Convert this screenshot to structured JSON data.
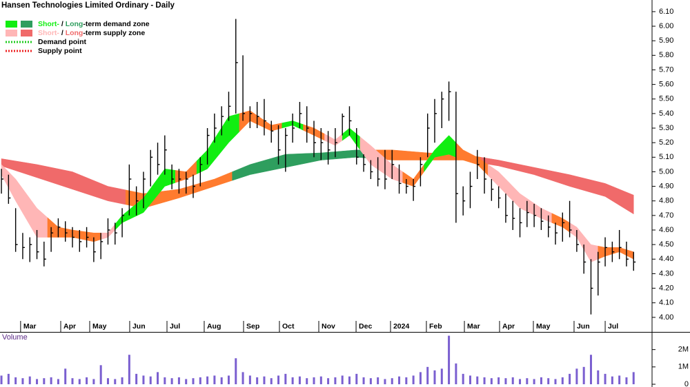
{
  "chart_data": {
    "type": "ohlc",
    "title": "Hansen Technologies Limited Ordinary - Daily",
    "color": "#000000",
    "xlim": [
      -0.2,
      91.6
    ],
    "xticks": [
      {
        "value": 2.7,
        "label": "Mar"
      },
      {
        "value": 8.35,
        "label": "Apr"
      },
      {
        "value": 12.43,
        "label": "May"
      },
      {
        "value": 18.06,
        "label": "Jun"
      },
      {
        "value": 23.31,
        "label": "Jul"
      },
      {
        "value": 28.55,
        "label": "Aug"
      },
      {
        "value": 34.09,
        "label": "Sep"
      },
      {
        "value": 39.14,
        "label": "Oct"
      },
      {
        "value": 44.68,
        "label": "Nov"
      },
      {
        "value": 49.93,
        "label": "Dec"
      },
      {
        "value": 54.78,
        "label": "2024"
      },
      {
        "value": 59.83,
        "label": "Feb"
      },
      {
        "value": 65.18,
        "label": "Mar"
      },
      {
        "value": 70.13,
        "label": "Apr"
      },
      {
        "value": 74.89,
        "label": "May"
      },
      {
        "value": 80.62,
        "label": "Jun"
      },
      {
        "value": 85.0,
        "label": "Jul"
      }
    ],
    "ylim": [
      3.9,
      6.18
    ],
    "yticks": [
      {
        "value": 4.0,
        "label": "4.00"
      },
      {
        "value": 4.1,
        "label": "4.10"
      },
      {
        "value": 4.2,
        "label": "4.20"
      },
      {
        "value": 4.3,
        "label": "4.30"
      },
      {
        "value": 4.4,
        "label": "4.40"
      },
      {
        "value": 4.5,
        "label": "4.50"
      },
      {
        "value": 4.6,
        "label": "4.60"
      },
      {
        "value": 4.7,
        "label": "4.70"
      },
      {
        "value": 4.8,
        "label": "4.80"
      },
      {
        "value": 4.9,
        "label": "4.90"
      },
      {
        "value": 5.0,
        "label": "5.00"
      },
      {
        "value": 5.1,
        "label": "5.10"
      },
      {
        "value": 5.2,
        "label": "5.20"
      },
      {
        "value": 5.3,
        "label": "5.30"
      },
      {
        "value": 5.4,
        "label": "5.40"
      },
      {
        "value": 5.5,
        "label": "5.50"
      },
      {
        "value": 5.6,
        "label": "5.60"
      },
      {
        "value": 5.7,
        "label": "5.70"
      },
      {
        "value": 5.8,
        "label": "5.80"
      },
      {
        "value": 5.9,
        "label": "5.90"
      },
      {
        "value": 6.0,
        "label": "6.00"
      },
      {
        "value": 6.1,
        "label": "6.10"
      }
    ],
    "high": [
      5.02,
      4.98,
      4.75,
      4.58,
      4.55,
      4.6,
      4.52,
      4.62,
      4.68,
      4.66,
      4.62,
      4.6,
      4.62,
      4.55,
      4.58,
      4.68,
      4.65,
      4.75,
      5.05,
      4.9,
      5.0,
      5.15,
      5.2,
      5.25,
      5.05,
      5.02,
      5.0,
      4.98,
      5.1,
      5.3,
      5.4,
      5.45,
      5.55,
      6.05,
      5.8,
      5.45,
      5.48,
      5.5,
      5.35,
      5.32,
      5.3,
      5.4,
      5.48,
      5.45,
      5.35,
      5.3,
      5.28,
      5.3,
      5.4,
      5.45,
      5.3,
      5.12,
      5.08,
      5.1,
      5.15,
      5.15,
      5.05,
      4.95,
      4.95,
      5.1,
      5.4,
      5.5,
      5.55,
      5.62,
      5.55,
      4.9,
      5.0,
      5.15,
      5.1,
      4.95,
      4.9,
      4.85,
      4.8,
      4.75,
      4.8,
      4.78,
      4.75,
      4.7,
      4.65,
      4.72,
      4.8,
      4.6,
      4.5,
      4.4,
      4.45,
      4.55,
      4.52,
      4.6,
      4.52,
      4.45
    ],
    "low": [
      4.85,
      4.78,
      4.45,
      4.4,
      4.38,
      4.4,
      4.35,
      4.45,
      4.55,
      4.52,
      4.48,
      4.45,
      4.48,
      4.38,
      4.4,
      4.5,
      4.5,
      4.55,
      4.7,
      4.7,
      4.75,
      4.9,
      4.98,
      4.98,
      4.88,
      4.85,
      4.85,
      4.82,
      4.9,
      5.05,
      5.2,
      5.25,
      5.35,
      5.4,
      5.35,
      5.3,
      5.3,
      5.25,
      5.2,
      5.05,
      5.0,
      5.2,
      5.3,
      5.2,
      5.1,
      5.08,
      5.05,
      5.1,
      5.25,
      5.25,
      5.05,
      5.0,
      4.95,
      4.9,
      4.88,
      4.95,
      4.85,
      4.85,
      4.8,
      4.9,
      5.1,
      5.2,
      5.3,
      5.35,
      4.65,
      4.7,
      4.75,
      4.95,
      4.85,
      4.8,
      4.75,
      4.65,
      4.6,
      4.55,
      4.62,
      4.62,
      4.6,
      4.55,
      4.5,
      4.52,
      4.55,
      4.45,
      4.3,
      4.02,
      4.15,
      4.35,
      4.38,
      4.4,
      4.35,
      4.32
    ],
    "close": [
      4.95,
      4.82,
      4.5,
      4.48,
      4.5,
      4.45,
      4.4,
      4.58,
      4.62,
      4.58,
      4.55,
      4.52,
      4.55,
      4.45,
      4.52,
      4.6,
      4.58,
      4.7,
      4.95,
      4.8,
      4.95,
      5.1,
      5.05,
      5.15,
      4.95,
      4.95,
      4.95,
      4.9,
      5.05,
      5.25,
      5.3,
      5.38,
      5.45,
      5.75,
      5.4,
      5.4,
      5.38,
      5.35,
      5.28,
      5.15,
      5.25,
      5.3,
      5.4,
      5.3,
      5.2,
      5.2,
      5.15,
      5.2,
      5.38,
      5.35,
      5.1,
      5.05,
      5.0,
      4.95,
      4.95,
      5.05,
      4.92,
      4.9,
      4.9,
      5.05,
      5.3,
      5.4,
      5.5,
      5.55,
      4.85,
      4.8,
      4.9,
      5.05,
      4.95,
      4.88,
      4.82,
      4.7,
      4.68,
      4.65,
      4.72,
      4.7,
      4.66,
      4.62,
      4.58,
      4.65,
      4.6,
      4.5,
      4.38,
      4.2,
      4.38,
      4.48,
      4.45,
      4.48,
      4.4,
      4.38
    ],
    "bands": [
      {
        "x": [
          0,
          5,
          10,
          15,
          20,
          25,
          30,
          35,
          40,
          45,
          50,
          55,
          60,
          65,
          70,
          75,
          80,
          85,
          89
        ],
        "upper": [
          5.09,
          5.05,
          5.0,
          4.9,
          4.85,
          4.88,
          4.95,
          5.05,
          5.12,
          5.13,
          5.15,
          5.15,
          5.13,
          5.12,
          5.08,
          5.03,
          4.98,
          4.92,
          4.84
        ],
        "lower": [
          5.04,
          4.96,
          4.88,
          4.8,
          4.75,
          4.82,
          4.9,
          4.98,
          5.03,
          5.08,
          5.1,
          5.08,
          5.08,
          5.08,
          5.04,
          4.98,
          4.9,
          4.83,
          4.71
        ],
        "zone": [
          "supply",
          "supply",
          "supply",
          "supply",
          "mixed",
          "mixed",
          "mixed",
          "demand",
          "demand",
          "demand",
          "demand",
          "mixed",
          "mixed",
          "mixed",
          "supply",
          "supply",
          "supply",
          "supply",
          "supply"
        ],
        "colors": {
          "demand": "#2e9e5e",
          "supply": "#f06a6a",
          "mixed": "#ff7b2e"
        }
      },
      {
        "x": [
          0,
          2,
          5,
          8,
          10,
          13,
          15,
          17,
          20,
          23,
          26,
          29,
          32,
          35,
          38,
          41,
          44,
          47,
          49,
          52,
          55,
          58,
          61,
          63,
          65,
          67,
          70,
          73,
          76,
          79,
          81,
          83,
          85,
          87,
          89
        ],
        "upper": [
          5.05,
          4.95,
          4.75,
          4.62,
          4.6,
          4.58,
          4.58,
          4.7,
          4.82,
          5.02,
          5.0,
          5.15,
          5.38,
          5.42,
          5.32,
          5.35,
          5.3,
          5.22,
          5.3,
          5.18,
          5.05,
          4.95,
          5.15,
          5.25,
          5.15,
          5.1,
          5.0,
          4.85,
          4.75,
          4.68,
          4.62,
          4.5,
          4.48,
          4.48,
          4.45
        ],
        "lower": [
          4.98,
          4.8,
          4.55,
          4.55,
          4.55,
          4.52,
          4.55,
          4.65,
          4.72,
          4.9,
          4.95,
          5.02,
          5.2,
          5.35,
          5.28,
          5.32,
          5.25,
          5.18,
          5.25,
          5.05,
          4.95,
          4.9,
          5.1,
          5.12,
          5.08,
          5.05,
          4.9,
          4.75,
          4.68,
          4.62,
          4.55,
          4.38,
          4.42,
          4.45,
          4.4
        ],
        "zone": [
          "supply",
          "supply",
          "supply",
          "mixed",
          "mixed",
          "mixed",
          "supply",
          "demand",
          "demand",
          "demand",
          "mixed",
          "demand",
          "demand",
          "mixed",
          "mixed",
          "demand",
          "mixed",
          "supply",
          "demand",
          "supply",
          "supply",
          "mixed",
          "demand",
          "demand",
          "mixed",
          "mixed",
          "supply",
          "supply",
          "supply",
          "mixed",
          "supply",
          "supply",
          "mixed",
          "mixed",
          "mixed"
        ],
        "colors": {
          "demand": "#11ee11",
          "supply": "#ffb6b6",
          "mixed": "#ff7b2e"
        }
      }
    ],
    "legend": [
      {
        "swatches": [
          "#11ee11",
          "#2e9e5e"
        ],
        "parts": [
          "Short-",
          " / ",
          "Long",
          "-term demand zone"
        ]
      },
      {
        "swatches": [
          "#ffb6b6",
          "#f06a6a"
        ],
        "parts": [
          "Short-",
          " / ",
          "Long",
          "-term supply zone"
        ]
      },
      {
        "line": "#22cc22",
        "text": "Demand point"
      },
      {
        "line": "#ee2222",
        "text": "Supply point"
      }
    ],
    "volume": {
      "label": "Volume",
      "color": "#7a5fd0",
      "ylim": [
        0,
        2900000
      ],
      "yticks": [
        0,
        {
          "value": 1000000,
          "label": "1M"
        },
        {
          "value": 2000000,
          "label": "2M"
        }
      ],
      "values": [
        500000,
        600000,
        400000,
        350000,
        450000,
        300000,
        350000,
        400000,
        300000,
        900000,
        350000,
        300000,
        400000,
        300000,
        1100000,
        350000,
        300000,
        400000,
        1700000,
        600000,
        500000,
        450000,
        700000,
        400000,
        350000,
        400000,
        300000,
        350000,
        400000,
        450000,
        500000,
        400000,
        500000,
        1500000,
        700000,
        500000,
        400000,
        450000,
        350000,
        500000,
        600000,
        400000,
        450000,
        350000,
        400000,
        450000,
        350000,
        400000,
        500000,
        450000,
        600000,
        400000,
        350000,
        400000,
        300000,
        350000,
        450000,
        400000,
        500000,
        700000,
        1000000,
        800000,
        900000,
        2800000,
        1200000,
        600000,
        500000,
        450000,
        400000,
        350000,
        400000,
        350000,
        400000,
        300000,
        350000,
        300000,
        400000,
        350000,
        300000,
        400000,
        600000,
        900000,
        1000000,
        1700000,
        800000,
        600000,
        450000,
        500000,
        400000,
        700000
      ]
    }
  }
}
